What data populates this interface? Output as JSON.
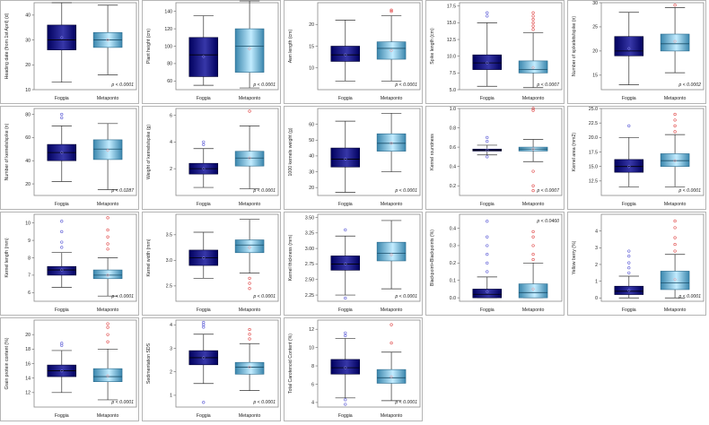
{
  "layout": {
    "columns": 5,
    "rows": 4
  },
  "colors": {
    "foggia_dark": "#00005e",
    "foggia_light": "#3737a8",
    "metaponto_dark": "#3a86ad",
    "metaponto_light": "#c2ecff",
    "foggia_outlier": "#5b5bd6",
    "metaponto_outlier": "#e04848"
  },
  "chart_data": [
    {
      "type": "box",
      "ylabel": "Heading date (from 1st April) (d)",
      "categories": [
        "Foggia",
        "Metaponto"
      ],
      "pvalue": "p < 0.0001",
      "ylim": [
        10,
        45
      ],
      "yticks": [
        10,
        20,
        30,
        40
      ],
      "boxes": [
        {
          "q1": 26,
          "median": 30,
          "q3": 36,
          "wlow": 13,
          "whigh": 45,
          "mean": 31,
          "outliers": []
        },
        {
          "q1": 27,
          "median": 30,
          "q3": 33,
          "wlow": 16,
          "whigh": 44,
          "mean": 30,
          "outliers": []
        }
      ]
    },
    {
      "type": "box",
      "ylabel": "Plant height (cm)",
      "categories": [
        "Foggia",
        "Metaponto"
      ],
      "pvalue": "p < 0.0001",
      "ylim": [
        50,
        150
      ],
      "yticks": [
        60,
        80,
        100,
        120,
        140
      ],
      "boxes": [
        {
          "q1": 65,
          "median": 90,
          "q3": 110,
          "wlow": 55,
          "whigh": 135,
          "mean": 88,
          "outliers": []
        },
        {
          "q1": 70,
          "median": 100,
          "q3": 120,
          "wlow": 52,
          "whigh": 152,
          "mean": 97,
          "outliers": []
        }
      ]
    },
    {
      "type": "box",
      "ylabel": "Awn length (cm)",
      "categories": [
        "Foggia",
        "Metaponto"
      ],
      "pvalue": "p < 0.0001",
      "ylim": [
        5,
        25
      ],
      "yticks": [
        10,
        15,
        20
      ],
      "boxes": [
        {
          "q1": 11.5,
          "median": 13,
          "q3": 15,
          "wlow": 7,
          "whigh": 21,
          "mean": 13,
          "outliers": []
        },
        {
          "q1": 12,
          "median": 14.5,
          "q3": 16,
          "wlow": 7,
          "whigh": 22,
          "mean": 14,
          "outliers": [
            23,
            23.3
          ]
        }
      ]
    },
    {
      "type": "box",
      "ylabel": "Spike length (cm)",
      "categories": [
        "Foggia",
        "Metaponto"
      ],
      "pvalue": "p < 0.0007",
      "ylim": [
        5,
        18
      ],
      "yticks": [
        5.0,
        7.5,
        10.0,
        12.5,
        15.0,
        17.5
      ],
      "boxes": [
        {
          "q1": 8,
          "median": 9,
          "q3": 10.2,
          "wlow": 5.5,
          "whigh": 15,
          "mean": 9,
          "outliers": [
            16,
            16.5
          ]
        },
        {
          "q1": 7.5,
          "median": 8,
          "q3": 9.3,
          "wlow": 5.3,
          "whigh": 13.5,
          "mean": 8.3,
          "outliers": [
            14,
            14.5,
            15,
            15.5,
            16,
            16.5
          ]
        }
      ]
    },
    {
      "type": "box",
      "ylabel": "Number of spikelets/spike (n)",
      "categories": [
        "Foggia",
        "Metaponto"
      ],
      "pvalue": "p < 0.0002",
      "ylim": [
        12,
        30
      ],
      "yticks": [
        15,
        20,
        25,
        30
      ],
      "boxes": [
        {
          "q1": 19,
          "median": 20,
          "q3": 23,
          "wlow": 13,
          "whigh": 28,
          "mean": 20.5,
          "outliers": []
        },
        {
          "q1": 20,
          "median": 21.5,
          "q3": 23.5,
          "wlow": 15.5,
          "whigh": 29,
          "mean": 22,
          "outliers": [
            29.5
          ]
        }
      ]
    },
    {
      "type": "box",
      "ylabel": "Number of kernels/spike (n)",
      "categories": [
        "Foggia",
        "Metaponto"
      ],
      "pvalue": "p < 0.0287",
      "ylim": [
        10,
        85
      ],
      "yticks": [
        20,
        40,
        60,
        80
      ],
      "boxes": [
        {
          "q1": 40,
          "median": 47,
          "q3": 54,
          "wlow": 22,
          "whigh": 70,
          "mean": 47,
          "outliers": [
            77,
            80
          ]
        },
        {
          "q1": 41,
          "median": 50,
          "q3": 58,
          "wlow": 15,
          "whigh": 72,
          "mean": 49,
          "outliers": []
        }
      ]
    },
    {
      "type": "box",
      "ylabel": "Weight of kernels/spike (g)",
      "categories": [
        "Foggia",
        "Metaponto"
      ],
      "pvalue": "p < 0.0001",
      "ylim": [
        0,
        6.5
      ],
      "yticks": [
        2,
        4,
        6
      ],
      "boxes": [
        {
          "q1": 1.6,
          "median": 2.0,
          "q3": 2.4,
          "wlow": 0.6,
          "whigh": 3.5,
          "mean": 2.0,
          "outliers": [
            3.8,
            4.0
          ]
        },
        {
          "q1": 2.2,
          "median": 2.8,
          "q3": 3.3,
          "wlow": 0.5,
          "whigh": 5.2,
          "mean": 2.8,
          "outliers": [
            6.3
          ]
        }
      ]
    },
    {
      "type": "box",
      "ylabel": "1000 kernels weight (g)",
      "categories": [
        "Foggia",
        "Metaponto"
      ],
      "pvalue": "p < 0.0001",
      "ylim": [
        15,
        70
      ],
      "yticks": [
        20,
        30,
        40,
        50,
        60
      ],
      "boxes": [
        {
          "q1": 33,
          "median": 38,
          "q3": 45,
          "wlow": 17,
          "whigh": 62,
          "mean": 38,
          "outliers": []
        },
        {
          "q1": 43,
          "median": 48,
          "q3": 54,
          "wlow": 30,
          "whigh": 67,
          "mean": 48,
          "outliers": []
        }
      ]
    },
    {
      "type": "box",
      "ylabel": "Kernel roundness",
      "categories": [
        "Foggia",
        "Metaponto"
      ],
      "pvalue": "p < 0.0007",
      "ylim": [
        0.1,
        1.0
      ],
      "yticks": [
        0.2,
        0.4,
        0.6,
        0.8,
        1.0
      ],
      "boxes": [
        {
          "q1": 0.56,
          "median": 0.57,
          "q3": 0.58,
          "wlow": 0.52,
          "whigh": 0.62,
          "mean": 0.57,
          "outliers": [
            0.5,
            0.66,
            0.7
          ]
        },
        {
          "q1": 0.56,
          "median": 0.58,
          "q3": 0.6,
          "wlow": 0.45,
          "whigh": 0.68,
          "mean": 0.58,
          "outliers": [
            0.15,
            0.2,
            0.35,
            0.98,
            1.0
          ]
        }
      ]
    },
    {
      "type": "box",
      "ylabel": "Kernel area (mm2)",
      "categories": [
        "Foggia",
        "Metaponto"
      ],
      "pvalue": "p < 0.0001",
      "ylim": [
        10,
        25
      ],
      "yticks": [
        12.5,
        15.0,
        17.5,
        20.0,
        22.5,
        25.0
      ],
      "boxes": [
        {
          "q1": 14,
          "median": 15,
          "q3": 16.2,
          "wlow": 11.5,
          "whigh": 20,
          "mean": 15,
          "outliers": [
            22
          ]
        },
        {
          "q1": 15,
          "median": 16,
          "q3": 17.2,
          "wlow": 11.5,
          "whigh": 20.5,
          "mean": 16,
          "outliers": [
            21,
            22,
            23,
            24
          ]
        }
      ]
    },
    {
      "type": "box",
      "ylabel": "Kernel length (mm)",
      "categories": [
        "Foggia",
        "Metaponto"
      ],
      "pvalue": "p < 0.0001",
      "ylim": [
        5.5,
        10.5
      ],
      "yticks": [
        6,
        7,
        8,
        9,
        10
      ],
      "boxes": [
        {
          "q1": 7.0,
          "median": 7.3,
          "q3": 7.5,
          "wlow": 6.3,
          "whigh": 8.3,
          "mean": 7.3,
          "outliers": [
            8.6,
            8.9,
            9.5,
            10.1
          ]
        },
        {
          "q1": 6.8,
          "median": 7.0,
          "q3": 7.3,
          "wlow": 5.8,
          "whigh": 8.0,
          "mean": 7.0,
          "outliers": [
            8.5,
            8.8,
            9.2,
            9.6,
            10.3
          ]
        }
      ]
    },
    {
      "type": "box",
      "ylabel": "Kernel width (mm)",
      "categories": [
        "Foggia",
        "Metaponto"
      ],
      "pvalue": "p < 0.0001",
      "ylim": [
        2.2,
        3.9
      ],
      "yticks": [
        2.5,
        3.0,
        3.5
      ],
      "boxes": [
        {
          "q1": 2.9,
          "median": 3.05,
          "q3": 3.2,
          "wlow": 2.65,
          "whigh": 3.55,
          "mean": 3.05,
          "outliers": []
        },
        {
          "q1": 3.15,
          "median": 3.3,
          "q3": 3.4,
          "wlow": 2.75,
          "whigh": 3.8,
          "mean": 3.25,
          "outliers": [
            2.45,
            2.55,
            2.65
          ]
        }
      ]
    },
    {
      "type": "box",
      "ylabel": "Kernel thickness (mm)",
      "categories": [
        "Foggia",
        "Metaponto"
      ],
      "pvalue": "p < 0.0001",
      "ylim": [
        2.15,
        3.55
      ],
      "yticks": [
        2.25,
        2.5,
        2.75,
        3.0,
        3.25,
        3.5
      ],
      "boxes": [
        {
          "q1": 2.65,
          "median": 2.75,
          "q3": 2.88,
          "wlow": 2.25,
          "whigh": 3.2,
          "mean": 2.75,
          "outliers": [
            2.2,
            3.3
          ]
        },
        {
          "q1": 2.8,
          "median": 2.92,
          "q3": 3.1,
          "wlow": 2.35,
          "whigh": 3.45,
          "mean": 2.9,
          "outliers": []
        }
      ]
    },
    {
      "type": "box",
      "ylabel": "Blackpoint+Blackpoints (%)",
      "categories": [
        "Foggia",
        "Metaponto"
      ],
      "pvalue": "p < 0.0460",
      "ylim": [
        -0.02,
        0.48
      ],
      "yticks": [
        0.0,
        0.1,
        0.2,
        0.3,
        0.4
      ],
      "boxes": [
        {
          "q1": 0.0,
          "median": 0.02,
          "q3": 0.05,
          "wlow": 0.0,
          "whigh": 0.12,
          "mean": 0.035,
          "outliers": [
            0.15,
            0.2,
            0.25,
            0.3,
            0.35,
            0.44
          ]
        },
        {
          "q1": 0.0,
          "median": 0.03,
          "q3": 0.08,
          "wlow": 0.0,
          "whigh": 0.2,
          "mean": 0.05,
          "outliers": [
            0.22,
            0.25,
            0.3,
            0.35,
            0.38
          ]
        }
      ]
    },
    {
      "type": "box",
      "ylabel": "Yellow berry (%)",
      "categories": [
        "Foggia",
        "Metaponto"
      ],
      "pvalue": "p < 0.0001",
      "ylim": [
        -0.2,
        5
      ],
      "yticks": [
        0,
        1,
        2,
        3,
        4
      ],
      "boxes": [
        {
          "q1": 0.2,
          "median": 0.4,
          "q3": 0.7,
          "wlow": 0,
          "whigh": 1.3,
          "mean": 0.45,
          "outliers": [
            1.5,
            1.8,
            2.1,
            2.5,
            2.8
          ]
        },
        {
          "q1": 0.5,
          "median": 0.9,
          "q3": 1.6,
          "wlow": 0,
          "whigh": 2.6,
          "mean": 1.1,
          "outliers": [
            2.8,
            3.2,
            3.6,
            4.2,
            4.6
          ]
        }
      ]
    },
    {
      "type": "box",
      "ylabel": "Grain protein content (%)",
      "categories": [
        "Foggia",
        "Metaponto"
      ],
      "pvalue": "p < 0.0001",
      "ylim": [
        10,
        22
      ],
      "yticks": [
        12,
        14,
        16,
        18,
        20
      ],
      "boxes": [
        {
          "q1": 14.2,
          "median": 15,
          "q3": 15.8,
          "wlow": 12,
          "whigh": 17.8,
          "mean": 15,
          "outliers": [
            18.5,
            18.8
          ]
        },
        {
          "q1": 13.5,
          "median": 14.2,
          "q3": 15.3,
          "wlow": 11,
          "whigh": 18,
          "mean": 14.3,
          "outliers": [
            19,
            20,
            21,
            21.5
          ]
        }
      ]
    },
    {
      "type": "box",
      "ylabel": "Sedimentation SDS",
      "categories": [
        "Foggia",
        "Metaponto"
      ],
      "pvalue": "p < 0.0001",
      "ylim": [
        0.5,
        4.2
      ],
      "yticks": [
        1,
        2,
        3,
        4
      ],
      "boxes": [
        {
          "q1": 2.3,
          "median": 2.6,
          "q3": 2.9,
          "wlow": 1.5,
          "whigh": 3.6,
          "mean": 2.6,
          "outliers": [
            0.7,
            3.9,
            4.0,
            4.1
          ]
        },
        {
          "q1": 1.9,
          "median": 2.2,
          "q3": 2.4,
          "wlow": 1.2,
          "whigh": 3.2,
          "mean": 2.2,
          "outliers": [
            3.4,
            3.6,
            3.8
          ]
        }
      ]
    },
    {
      "type": "box",
      "ylabel": "Total Carotenoid Content (%)",
      "categories": [
        "Foggia",
        "Metaponto"
      ],
      "pvalue": "p < 0.0001",
      "ylim": [
        3.5,
        13
      ],
      "yticks": [
        4,
        6,
        8,
        10,
        12
      ],
      "boxes": [
        {
          "q1": 7.1,
          "median": 7.8,
          "q3": 8.7,
          "wlow": 4.5,
          "whigh": 11,
          "mean": 7.8,
          "outliers": [
            3.8,
            4.3,
            11.3,
            11.6
          ]
        },
        {
          "q1": 6.1,
          "median": 6.7,
          "q3": 7.6,
          "wlow": 4.2,
          "whigh": 9.5,
          "mean": 6.8,
          "outliers": [
            10.5,
            12.5
          ]
        }
      ]
    }
  ]
}
